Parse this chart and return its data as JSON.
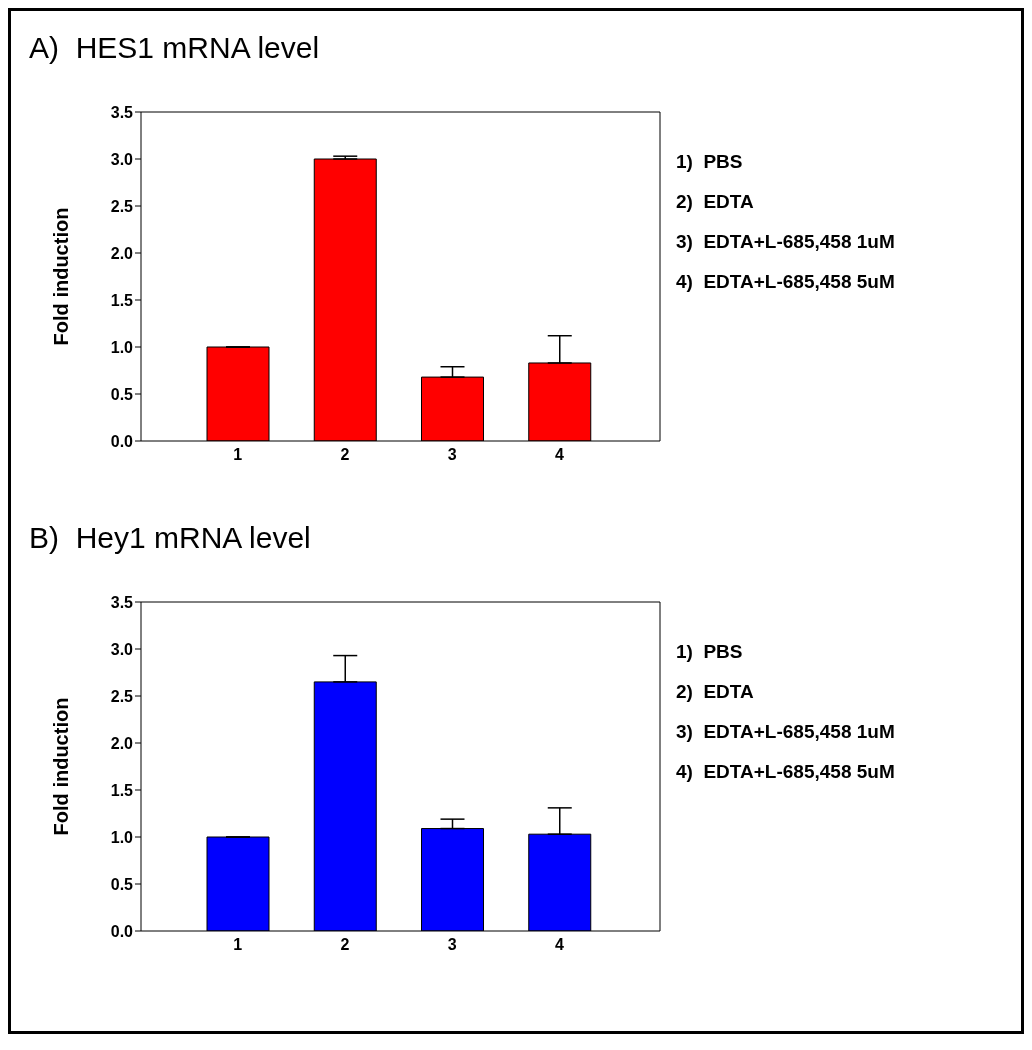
{
  "chart_data": [
    {
      "type": "bar",
      "title": "A)  HES1 mRNA level",
      "ylabel": "Fold induction",
      "categories": [
        "1",
        "2",
        "3",
        "4"
      ],
      "values": [
        1.0,
        3.0,
        0.68,
        0.83
      ],
      "color": "#ff0000",
      "errors": [
        null,
        [
          3.0,
          3.03
        ],
        [
          0.68,
          0.79
        ],
        [
          0.83,
          1.12
        ]
      ],
      "ylim": [
        0,
        3.5
      ],
      "yticks": [
        {
          "value": 0,
          "label": "0.0"
        },
        {
          "value": 0.5,
          "label": "0.5"
        },
        {
          "value": 1,
          "label": "1.0"
        },
        {
          "value": 1.5,
          "label": "1.5"
        },
        {
          "value": 2,
          "label": "2.0"
        },
        {
          "value": 2.5,
          "label": "2.5"
        },
        {
          "value": 3,
          "label": "3.0"
        },
        {
          "value": 3.5,
          "label": "3.5"
        }
      ],
      "grid": false,
      "annotations": [
        "1)  PBS",
        "2)  EDTA",
        "3)  EDTA+L-685,458 1uM",
        "4)  EDTA+L-685,458 5uM"
      ]
    },
    {
      "type": "bar",
      "title": "B)  Hey1 mRNA level",
      "ylabel": "Fold induction",
      "categories": [
        "1",
        "2",
        "3",
        "4"
      ],
      "values": [
        1.0,
        2.65,
        1.09,
        1.03
      ],
      "color": "#0000ff",
      "errors": [
        null,
        [
          2.65,
          2.93
        ],
        [
          1.09,
          1.19
        ],
        [
          1.03,
          1.31
        ]
      ],
      "ylim": [
        0,
        3.5
      ],
      "yticks": [
        {
          "value": 0,
          "label": "0.0"
        },
        {
          "value": 0.5,
          "label": "0.5"
        },
        {
          "value": 1,
          "label": "1.0"
        },
        {
          "value": 1.5,
          "label": "1.5"
        },
        {
          "value": 2,
          "label": "2.0"
        },
        {
          "value": 2.5,
          "label": "2.5"
        },
        {
          "value": 3,
          "label": "3.0"
        },
        {
          "value": 3.5,
          "label": "3.5"
        }
      ],
      "grid": false,
      "annotations": [
        "1)  PBS",
        "2)  EDTA",
        "3)  EDTA+L-685,458 1uM",
        "4)  EDTA+L-685,458 5uM"
      ]
    }
  ]
}
